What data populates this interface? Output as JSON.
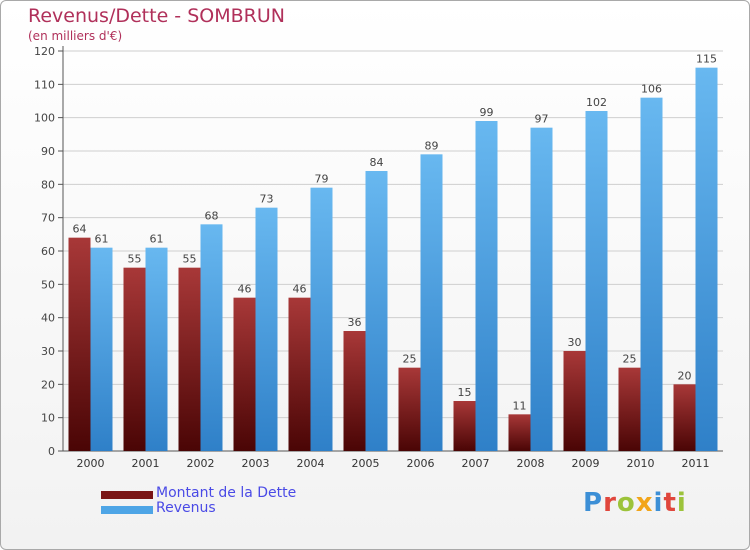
{
  "chart_data": {
    "type": "bar",
    "title": "Revenus/Dette - SOMBRUN",
    "subtitle": "(en milliers d'€)",
    "categories": [
      "2000",
      "2001",
      "2002",
      "2003",
      "2004",
      "2005",
      "2006",
      "2007",
      "2008",
      "2009",
      "2010",
      "2011"
    ],
    "series": [
      {
        "name": "Montant de la Dette",
        "values": [
          64,
          55,
          55,
          46,
          46,
          36,
          25,
          15,
          11,
          30,
          25,
          20
        ],
        "color": "#7a1515"
      },
      {
        "name": "Revenus",
        "values": [
          61,
          61,
          68,
          73,
          79,
          84,
          89,
          99,
          97,
          102,
          106,
          115
        ],
        "color": "#4ea5e6"
      }
    ],
    "yticks": [
      0,
      10,
      20,
      30,
      40,
      50,
      60,
      70,
      80,
      90,
      100,
      110,
      120
    ],
    "ylim": [
      0,
      120
    ],
    "grid": true,
    "legend_position": "bottom-left"
  },
  "logo": {
    "text": "Proxiti",
    "colors": [
      "#3c8fd6",
      "#e0463c",
      "#9cc33a",
      "#f2a51a",
      "#3c8fd6",
      "#e0463c",
      "#9cc33a"
    ]
  }
}
